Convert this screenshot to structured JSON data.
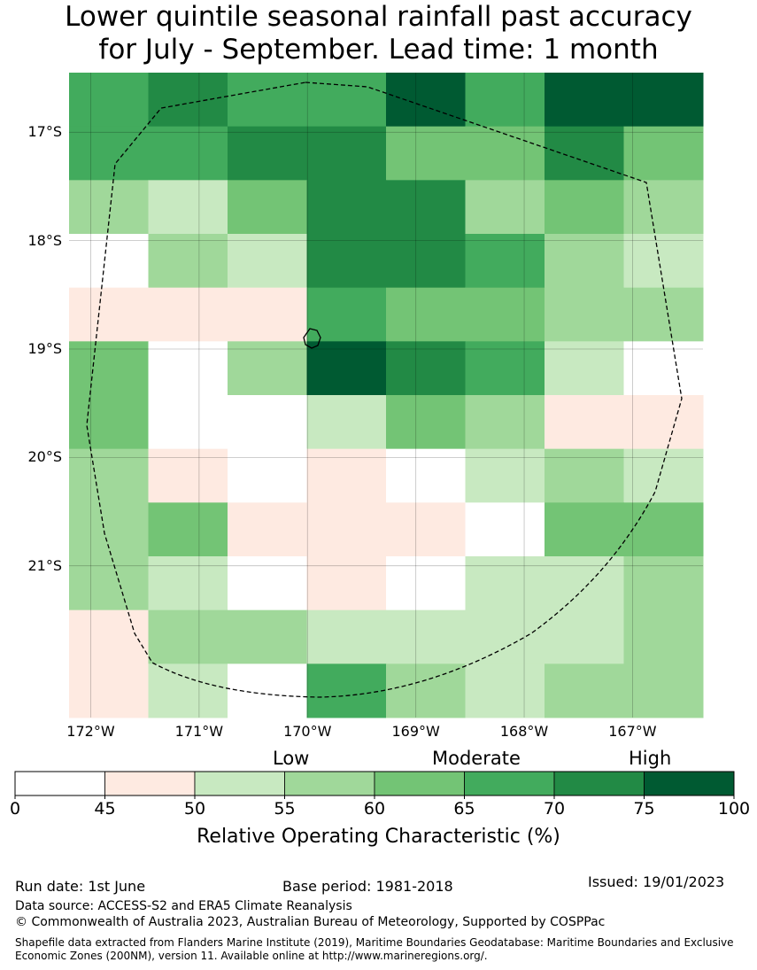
{
  "title": {
    "line1": "Lower quintile seasonal rainfall past accuracy",
    "line2": "for July - September. Lead time: 1 month"
  },
  "map": {
    "lon_range": [
      -172.2,
      -166.35
    ],
    "lat_range": [
      -22.4,
      -16.45
    ],
    "lat_labels": [
      "17°S",
      "18°S",
      "19°S",
      "20°S",
      "21°S"
    ],
    "lat_values": [
      -17,
      -18,
      -19,
      -20,
      -21
    ],
    "lon_labels": [
      "172°W",
      "171°W",
      "170°W",
      "169°W",
      "168°W",
      "167°W"
    ],
    "lon_values": [
      -172,
      -171,
      -170,
      -169,
      -168,
      -167
    ],
    "columns": 8,
    "rows": 12,
    "grid": [
      [
        5,
        6,
        5,
        5,
        7,
        5,
        7,
        7
      ],
      [
        5,
        5,
        6,
        6,
        4,
        4,
        6,
        4
      ],
      [
        3,
        2,
        4,
        6,
        6,
        3,
        4,
        3
      ],
      [
        0,
        3,
        2,
        6,
        6,
        5,
        3,
        2
      ],
      [
        1,
        1,
        1,
        5,
        4,
        4,
        3,
        3
      ],
      [
        4,
        0,
        3,
        7,
        6,
        5,
        2,
        0
      ],
      [
        4,
        0,
        0,
        2,
        4,
        3,
        1,
        1
      ],
      [
        3,
        1,
        0,
        1,
        0,
        2,
        3,
        2
      ],
      [
        3,
        4,
        1,
        1,
        1,
        0,
        4,
        4
      ],
      [
        3,
        2,
        0,
        1,
        0,
        2,
        2,
        3
      ],
      [
        1,
        3,
        3,
        2,
        2,
        2,
        2,
        3
      ],
      [
        1,
        2,
        0,
        5,
        3,
        2,
        3,
        3
      ]
    ]
  },
  "colorbar": {
    "category_labels": [
      "Low",
      "Moderate",
      "High"
    ],
    "ticks": [
      "0",
      "45",
      "50",
      "55",
      "60",
      "65",
      "70",
      "75",
      "100"
    ],
    "colors": [
      "#ffffff",
      "#feeae1",
      "#c8e9c1",
      "#a0d89a",
      "#73c475",
      "#42ab5d",
      "#228a45",
      "#005a32"
    ],
    "label": "Relative Operating Characteristic (%)"
  },
  "footer": {
    "run_date": "Run date: 1st June",
    "base_period": "Base period: 1981-2018",
    "issued": "Issued: 19/01/2023",
    "data_source": "Data source: ACCESS-S2 and ERA5 Climate Reanalysis",
    "copyright": "© Commonwealth of Australia 2023, Australian Bureau of Meteorology, Supported by COSPPac",
    "shapefile": "Shapefile data extracted from Flanders Marine Institute (2019), Maritime Boundaries Geodatabase: Maritime Boundaries and Exclusive Economic Zones (200NM), version 11. Available online at http://www.marineregions.org/."
  }
}
